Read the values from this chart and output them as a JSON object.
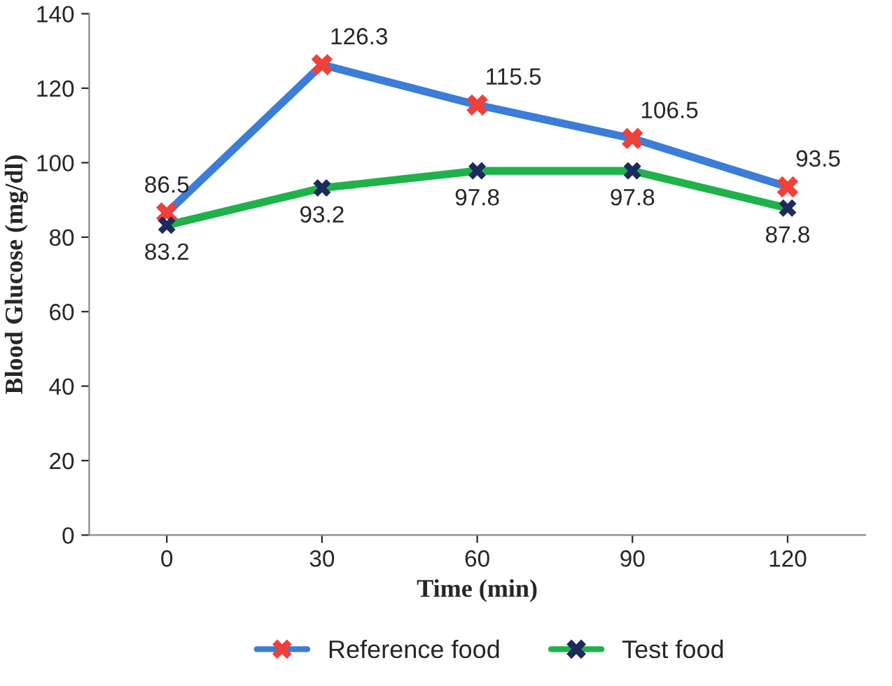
{
  "chart_data": {
    "type": "line",
    "xlabel": "Time (min)",
    "ylabel": "Blood Glucose (mg/dl)",
    "categories": [
      "0",
      "30",
      "60",
      "90",
      "120"
    ],
    "series": [
      {
        "name": "Reference food",
        "color": "#3b7dd8",
        "values": [
          86.5,
          126.3,
          115.5,
          106.5,
          93.5
        ]
      },
      {
        "name": "Test food",
        "color": "#1fb24a",
        "values": [
          83.2,
          93.2,
          97.8,
          97.8,
          87.8
        ]
      }
    ],
    "ylim": [
      0,
      140
    ],
    "yticks": [
      0,
      20,
      40,
      60,
      80,
      100,
      120,
      140
    ],
    "data_labels": true,
    "legend": "bottom",
    "marker": "cross",
    "grid": false
  }
}
